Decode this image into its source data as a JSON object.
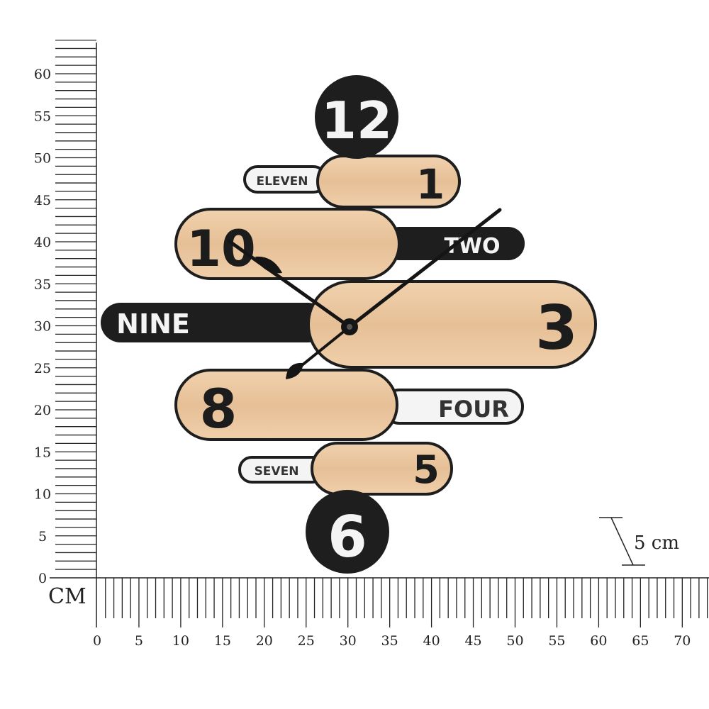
{
  "ruler": {
    "unit_label": "CM",
    "vertical_ticks": [
      "0",
      "5",
      "10",
      "15",
      "20",
      "25",
      "30",
      "35",
      "40",
      "45",
      "50",
      "55",
      "60"
    ],
    "horizontal_ticks": [
      "0",
      "5",
      "10",
      "15",
      "20",
      "25",
      "30",
      "35",
      "40",
      "45",
      "50",
      "55",
      "60",
      "65",
      "70"
    ],
    "scale_marker": "5 cm"
  },
  "clock": {
    "numbers": {
      "twelve": "12",
      "one": "1",
      "ten": "10",
      "three": "3",
      "eight": "8",
      "five": "5",
      "six": "6"
    },
    "words": {
      "eleven": "ELEVEN",
      "two": "TWO",
      "nine": "NINE",
      "four": "FOUR",
      "seven": "SEVEN"
    },
    "colors": {
      "wood": "#e8c49e",
      "black": "#1e1e1e",
      "white": "#f4f4f4"
    }
  }
}
